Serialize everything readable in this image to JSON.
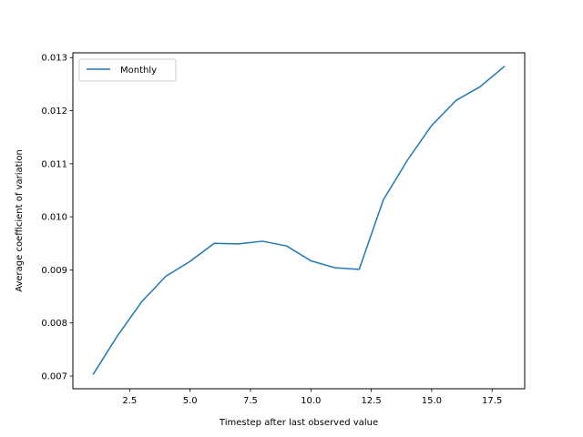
{
  "chart_data": {
    "type": "line",
    "title": "",
    "xlabel": "Timestep after last observed value",
    "ylabel": "Average coefficient of variation",
    "xlim": [
      0.15,
      18.85
    ],
    "ylim": [
      0.00676,
      0.01309
    ],
    "xticks": [
      2.5,
      5.0,
      7.5,
      10.0,
      12.5,
      15.0,
      17.5
    ],
    "xtick_labels": [
      "2.5",
      "5.0",
      "7.5",
      "10.0",
      "12.5",
      "15.0",
      "17.5"
    ],
    "yticks": [
      0.007,
      0.008,
      0.009,
      0.01,
      0.011,
      0.012,
      0.013
    ],
    "ytick_labels": [
      "0.007",
      "0.008",
      "0.009",
      "0.010",
      "0.011",
      "0.012",
      "0.013"
    ],
    "grid": false,
    "legend_position": "top-left",
    "series": [
      {
        "name": "Monthly",
        "color": "#1f77b4",
        "x": [
          1,
          2,
          3,
          4,
          5,
          6,
          7,
          8,
          9,
          10,
          11,
          12,
          13,
          14,
          15,
          16,
          17,
          18
        ],
        "y": [
          0.00704,
          0.00776,
          0.0084,
          0.00888,
          0.00916,
          0.0095,
          0.00949,
          0.00954,
          0.00945,
          0.00917,
          0.00904,
          0.00901,
          0.01032,
          0.01107,
          0.01172,
          0.01219,
          0.01245,
          0.01283
        ]
      }
    ]
  }
}
